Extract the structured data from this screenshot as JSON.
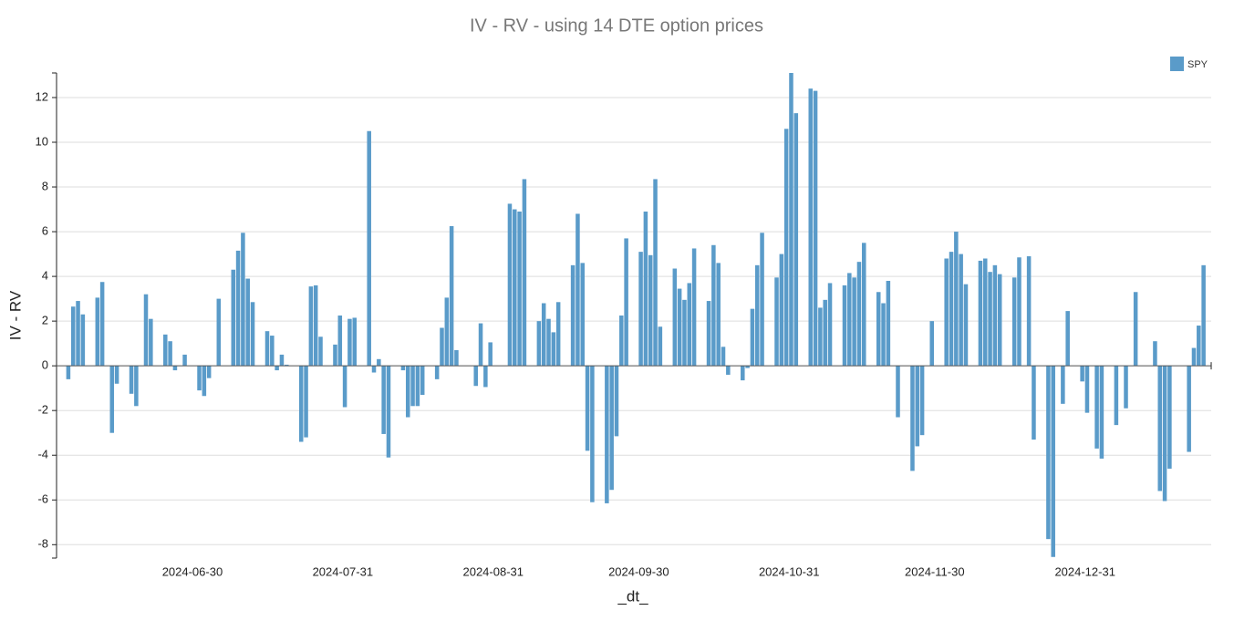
{
  "chart_data": {
    "type": "bar",
    "title": "IV - RV  - using 14 DTE option prices",
    "x_label": "_dt_",
    "y_label": "IV - RV",
    "grid": true,
    "legend": "top-right",
    "xlim": [
      "2024-06-02",
      "2025-01-26"
    ],
    "xticks": [
      "2024-06-30",
      "2024-07-31",
      "2024-08-31",
      "2024-09-30",
      "2024-10-31",
      "2024-11-30",
      "2024-12-31"
    ],
    "ylim": [
      -8.6,
      13.1
    ],
    "yticks": [
      -8,
      -6,
      -4,
      -2,
      0,
      2,
      4,
      6,
      8,
      10,
      12
    ],
    "x": [
      "2024-06-04",
      "2024-06-05",
      "2024-06-06",
      "2024-06-07",
      "2024-06-10",
      "2024-06-11",
      "2024-06-13",
      "2024-06-14",
      "2024-06-17",
      "2024-06-18",
      "2024-06-20",
      "2024-06-21",
      "2024-06-24",
      "2024-06-25",
      "2024-06-26",
      "2024-06-28",
      "2024-07-01",
      "2024-07-02",
      "2024-07-03",
      "2024-07-05",
      "2024-07-08",
      "2024-07-09",
      "2024-07-10",
      "2024-07-11",
      "2024-07-12",
      "2024-07-15",
      "2024-07-16",
      "2024-07-17",
      "2024-07-18",
      "2024-07-19",
      "2024-07-22",
      "2024-07-23",
      "2024-07-24",
      "2024-07-25",
      "2024-07-26",
      "2024-07-29",
      "2024-07-30",
      "2024-07-31",
      "2024-08-01",
      "2024-08-02",
      "2024-08-05",
      "2024-08-06",
      "2024-08-07",
      "2024-08-08",
      "2024-08-09",
      "2024-08-12",
      "2024-08-13",
      "2024-08-14",
      "2024-08-15",
      "2024-08-16",
      "2024-08-19",
      "2024-08-20",
      "2024-08-21",
      "2024-08-22",
      "2024-08-23",
      "2024-08-27",
      "2024-08-28",
      "2024-08-29",
      "2024-08-30",
      "2024-09-03",
      "2024-09-04",
      "2024-09-05",
      "2024-09-06",
      "2024-09-09",
      "2024-09-10",
      "2024-09-11",
      "2024-09-12",
      "2024-09-13",
      "2024-09-16",
      "2024-09-17",
      "2024-09-18",
      "2024-09-19",
      "2024-09-20",
      "2024-09-23",
      "2024-09-24",
      "2024-09-25",
      "2024-09-26",
      "2024-09-27",
      "2024-09-30",
      "2024-10-01",
      "2024-10-02",
      "2024-10-03",
      "2024-10-04",
      "2024-10-07",
      "2024-10-08",
      "2024-10-09",
      "2024-10-10",
      "2024-10-11",
      "2024-10-14",
      "2024-10-15",
      "2024-10-16",
      "2024-10-17",
      "2024-10-18",
      "2024-10-21",
      "2024-10-22",
      "2024-10-23",
      "2024-10-24",
      "2024-10-25",
      "2024-10-28",
      "2024-10-29",
      "2024-10-30",
      "2024-10-31",
      "2024-11-01",
      "2024-11-04",
      "2024-11-05",
      "2024-11-06",
      "2024-11-07",
      "2024-11-08",
      "2024-11-11",
      "2024-11-12",
      "2024-11-13",
      "2024-11-14",
      "2024-11-15",
      "2024-11-18",
      "2024-11-19",
      "2024-11-20",
      "2024-11-22",
      "2024-11-25",
      "2024-11-26",
      "2024-11-27",
      "2024-11-29",
      "2024-12-02",
      "2024-12-03",
      "2024-12-04",
      "2024-12-05",
      "2024-12-06",
      "2024-12-09",
      "2024-12-10",
      "2024-12-11",
      "2024-12-12",
      "2024-12-13",
      "2024-12-16",
      "2024-12-17",
      "2024-12-19",
      "2024-12-20",
      "2024-12-23",
      "2024-12-24",
      "2024-12-26",
      "2024-12-27",
      "2024-12-30",
      "2024-12-31",
      "2025-01-02",
      "2025-01-03",
      "2025-01-06",
      "2025-01-08",
      "2025-01-10",
      "2025-01-14",
      "2025-01-15",
      "2025-01-16",
      "2025-01-17",
      "2025-01-21",
      "2025-01-22",
      "2025-01-23",
      "2025-01-24"
    ],
    "series": [
      {
        "name": "SPY",
        "color": "#5a9bc9",
        "values": [
          -0.6,
          2.65,
          2.9,
          2.3,
          3.05,
          3.75,
          -3.0,
          -0.8,
          -1.25,
          -1.8,
          3.2,
          2.1,
          1.4,
          1.1,
          -0.2,
          0.5,
          -1.1,
          -1.35,
          -0.55,
          3.0,
          4.3,
          5.15,
          5.95,
          3.9,
          2.85,
          1.55,
          1.35,
          -0.2,
          0.5,
          0.05,
          -3.4,
          -3.2,
          3.55,
          3.6,
          1.3,
          0.95,
          2.25,
          -1.85,
          2.1,
          2.15,
          10.5,
          -0.3,
          0.3,
          -3.05,
          -4.1,
          -0.2,
          -2.3,
          -1.8,
          -1.8,
          -1.3,
          -0.6,
          1.7,
          3.05,
          6.25,
          0.7,
          -0.9,
          1.9,
          -0.95,
          1.05,
          7.25,
          7.0,
          6.9,
          8.35,
          2.0,
          2.8,
          2.1,
          1.5,
          2.85,
          4.5,
          6.8,
          4.6,
          -3.8,
          -6.1,
          -6.15,
          -5.55,
          -3.15,
          2.25,
          5.7,
          5.1,
          6.9,
          4.95,
          8.35,
          1.75,
          4.35,
          3.45,
          2.95,
          3.7,
          5.25,
          2.9,
          5.4,
          4.6,
          0.85,
          -0.4,
          -0.65,
          -0.1,
          2.55,
          4.5,
          5.95,
          3.95,
          5.0,
          10.6,
          13.1,
          11.3,
          12.4,
          12.3,
          2.6,
          2.95,
          3.7,
          3.6,
          4.15,
          3.95,
          4.65,
          5.5,
          3.3,
          2.8,
          3.8,
          -2.3,
          -4.7,
          -3.6,
          -3.1,
          2.0,
          4.8,
          5.1,
          6.0,
          5.0,
          3.65,
          4.7,
          4.8,
          4.2,
          4.5,
          4.1,
          3.95,
          4.85,
          4.9,
          -3.3,
          -7.75,
          -8.55,
          -1.7,
          2.45,
          -0.7,
          -2.1,
          -3.7,
          -4.15,
          -2.65,
          -1.9,
          3.3,
          1.1,
          -5.6,
          -6.05,
          -4.6,
          -3.85,
          0.8,
          1.8,
          4.5
        ]
      }
    ]
  }
}
